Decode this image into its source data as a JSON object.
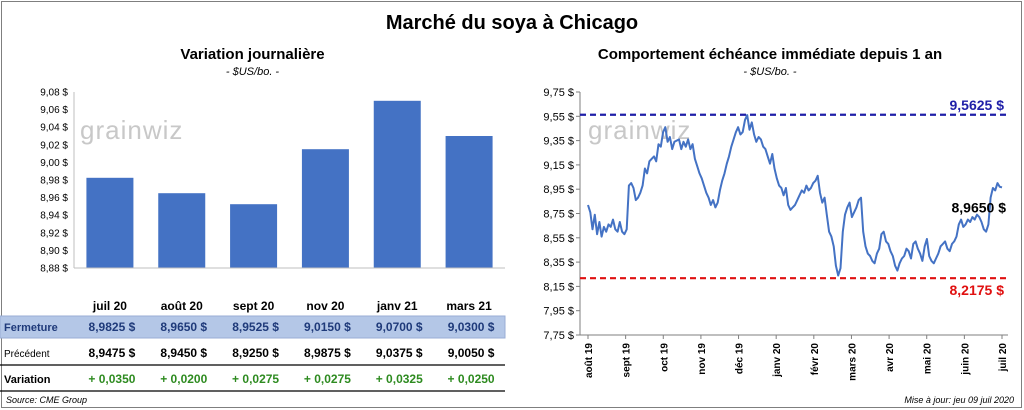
{
  "main_title": "Marché du soya à Chicago",
  "left": {
    "title": "Variation  journalière",
    "unit": "- $US/bo. -",
    "watermark": "grainwiz",
    "row_labels": {
      "close": "Fermeture",
      "prev": "Précédent",
      "change": "Variation"
    },
    "colors": {
      "bar": "#4472c4",
      "highlight": "#b4c7e7",
      "positive": "#2e8b20"
    }
  },
  "right": {
    "title": "Comportement  échéance immédiate depuis 1 an",
    "unit": "- $US/bo. -",
    "watermark": "grainwiz",
    "max_label": "9,5625  $",
    "min_label": "8,2175  $",
    "last_label": "8,9650 $",
    "colors": {
      "line": "#4472c4",
      "max": "#1f1fa8",
      "min": "#e01010"
    }
  },
  "footer": {
    "source": "Source: CME Group",
    "updated": "Mise à jour: jeu 09 juil 2020"
  },
  "chart_data": [
    {
      "type": "bar",
      "categories": [
        "juil 20",
        "août 20",
        "sept 20",
        "nov 20",
        "janv 21",
        "mars 21"
      ],
      "values": [
        8.9825,
        8.965,
        8.9525,
        9.015,
        9.07,
        9.03
      ],
      "ylim": [
        8.88,
        9.08
      ],
      "yticks": [
        "8,88 $",
        "8,90 $",
        "8,92 $",
        "8,94 $",
        "8,96 $",
        "8,98 $",
        "9,00 $",
        "9,02 $",
        "9,04 $",
        "9,06 $",
        "9,08 $"
      ],
      "table": {
        "close": [
          "8,9825  $",
          "8,9650  $",
          "8,9525  $",
          "9,0150  $",
          "9,0700  $",
          "9,0300  $"
        ],
        "prev": [
          "8,9475  $",
          "8,9450  $",
          "8,9250  $",
          "8,9875  $",
          "9,0375  $",
          "9,0050  $"
        ],
        "change": [
          "+ 0,0350",
          "+ 0,0200",
          "+ 0,0275",
          "+ 0,0275",
          "+ 0,0325",
          "+ 0,0250"
        ]
      }
    },
    {
      "type": "line",
      "ylim": [
        7.75,
        9.75
      ],
      "yticks": [
        "7,75 $",
        "7,95 $",
        "8,15 $",
        "8,35 $",
        "8,55 $",
        "8,75 $",
        "8,95 $",
        "9,15 $",
        "9,35 $",
        "9,55 $",
        "9,75 $"
      ],
      "xticks": [
        "août 19",
        "sept 19",
        "oct 19",
        "nov 19",
        "déc 19",
        "janv 20",
        "févr 20",
        "mars 20",
        "avr 20",
        "mai 20",
        "juin 20",
        "juil 20"
      ],
      "max_line": 9.5625,
      "min_line": 8.2175,
      "values": [
        8.82,
        8.76,
        8.62,
        8.74,
        8.58,
        8.68,
        8.56,
        8.64,
        8.6,
        8.66,
        8.64,
        8.7,
        8.62,
        8.6,
        8.68,
        8.6,
        8.58,
        8.62,
        8.98,
        9.0,
        8.96,
        8.86,
        8.88,
        8.92,
        8.98,
        9.12,
        9.08,
        9.18,
        9.2,
        9.22,
        9.18,
        9.32,
        9.3,
        9.42,
        9.46,
        9.34,
        9.38,
        9.28,
        9.34,
        9.35,
        9.36,
        9.28,
        9.34,
        9.3,
        9.36,
        9.28,
        9.32,
        9.2,
        9.14,
        9.08,
        9.04,
        8.98,
        8.92,
        8.88,
        8.82,
        8.86,
        8.8,
        8.84,
        8.94,
        9.02,
        9.08,
        9.16,
        9.22,
        9.3,
        9.36,
        9.42,
        9.46,
        9.4,
        9.42,
        9.52,
        9.56,
        9.44,
        9.5,
        9.4,
        9.34,
        9.38,
        9.36,
        9.3,
        9.28,
        9.22,
        9.16,
        9.24,
        9.12,
        9.04,
        8.98,
        8.96,
        8.9,
        8.96,
        8.82,
        8.78,
        8.8,
        8.82,
        8.86,
        8.9,
        8.94,
        8.92,
        8.98,
        8.94,
        8.96,
        9.0,
        9.02,
        9.06,
        8.92,
        8.84,
        8.88,
        8.74,
        8.6,
        8.56,
        8.48,
        8.32,
        8.24,
        8.3,
        8.6,
        8.74,
        8.8,
        8.84,
        8.72,
        8.76,
        8.8,
        8.86,
        8.88,
        8.6,
        8.48,
        8.42,
        8.4,
        8.36,
        8.34,
        8.42,
        8.46,
        8.58,
        8.6,
        8.52,
        8.5,
        8.44,
        8.4,
        8.32,
        8.28,
        8.34,
        8.38,
        8.4,
        8.46,
        8.44,
        8.38,
        8.5,
        8.52,
        8.46,
        8.42,
        8.36,
        8.48,
        8.54,
        8.4,
        8.36,
        8.34,
        8.38,
        8.42,
        8.48,
        8.5,
        8.52,
        8.46,
        8.44,
        8.5,
        8.52,
        8.56,
        8.66,
        8.7,
        8.64,
        8.66,
        8.7,
        8.68,
        8.72,
        8.7,
        8.74,
        8.72,
        8.68,
        8.62,
        8.6,
        8.66,
        8.88,
        8.96,
        8.94,
        9.0,
        8.97,
        8.965
      ]
    }
  ]
}
